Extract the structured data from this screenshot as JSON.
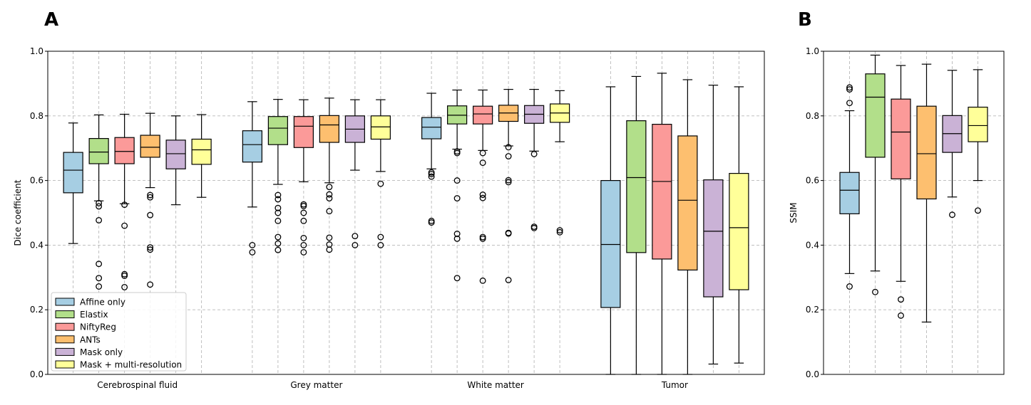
{
  "panel_labels": {
    "a": "A",
    "b": "B"
  },
  "chart_data": [
    {
      "type": "box",
      "panel": "A",
      "ylabel": "Dice coefficient",
      "xlabel": "",
      "ylim": [
        0.0,
        1.0
      ],
      "yticks": [
        "0.0",
        "0.2",
        "0.4",
        "0.6",
        "0.8",
        "1.0"
      ],
      "grid": true,
      "legend_position": "lower-left",
      "methods": [
        "Affine only",
        "Elastix",
        "NiftyReg",
        "ANTs",
        "Mask only",
        "Mask + multi-resolution"
      ],
      "colors": [
        "#a6cee3",
        "#b2df8a",
        "#fb9a99",
        "#fdbf6f",
        "#cab2d6",
        "#ffff99"
      ],
      "categories": [
        "Cerebrospinal fluid",
        "Grey matter",
        "White matter",
        "Tumor"
      ],
      "groups": [
        {
          "category": "Cerebrospinal fluid",
          "boxes": [
            {
              "method": "Affine only",
              "whislo": 0.405,
              "q1": 0.562,
              "med": 0.632,
              "q3": 0.687,
              "whishi": 0.778,
              "fliers": []
            },
            {
              "method": "Elastix",
              "whislo": 0.537,
              "q1": 0.652,
              "med": 0.688,
              "q3": 0.73,
              "whishi": 0.803,
              "fliers": [
                0.53,
                0.52,
                0.477,
                0.342,
                0.298,
                0.272
              ]
            },
            {
              "method": "NiftyReg",
              "whislo": 0.528,
              "q1": 0.652,
              "med": 0.69,
              "q3": 0.733,
              "whishi": 0.805,
              "fliers": [
                0.525,
                0.46,
                0.31,
                0.305,
                0.27
              ]
            },
            {
              "method": "ANTs",
              "whislo": 0.578,
              "q1": 0.672,
              "med": 0.703,
              "q3": 0.74,
              "whishi": 0.808,
              "fliers": [
                0.555,
                0.548,
                0.493,
                0.393,
                0.386,
                0.278
              ]
            },
            {
              "method": "Mask only",
              "whislo": 0.525,
              "q1": 0.636,
              "med": 0.683,
              "q3": 0.725,
              "whishi": 0.8,
              "fliers": []
            },
            {
              "method": "Mask + multi-resolution",
              "whislo": 0.548,
              "q1": 0.65,
              "med": 0.695,
              "q3": 0.728,
              "whishi": 0.804,
              "fliers": []
            }
          ]
        },
        {
          "category": "Grey matter",
          "boxes": [
            {
              "method": "Affine only",
              "whislo": 0.518,
              "q1": 0.657,
              "med": 0.711,
              "q3": 0.754,
              "whishi": 0.844,
              "fliers": [
                0.4,
                0.378
              ]
            },
            {
              "method": "Elastix",
              "whislo": 0.588,
              "q1": 0.711,
              "med": 0.762,
              "q3": 0.798,
              "whishi": 0.851,
              "fliers": [
                0.555,
                0.542,
                0.515,
                0.5,
                0.475,
                0.425,
                0.405,
                0.385
              ]
            },
            {
              "method": "NiftyReg",
              "whislo": 0.596,
              "q1": 0.702,
              "med": 0.768,
              "q3": 0.798,
              "whishi": 0.85,
              "fliers": [
                0.526,
                0.521,
                0.5,
                0.475,
                0.422,
                0.4,
                0.378
              ]
            },
            {
              "method": "ANTs",
              "whislo": 0.593,
              "q1": 0.718,
              "med": 0.772,
              "q3": 0.801,
              "whishi": 0.855,
              "fliers": [
                0.58,
                0.557,
                0.545,
                0.505,
                0.423,
                0.402,
                0.386
              ]
            },
            {
              "method": "Mask only",
              "whislo": 0.632,
              "q1": 0.718,
              "med": 0.759,
              "q3": 0.8,
              "whishi": 0.85,
              "fliers": [
                0.428,
                0.4
              ]
            },
            {
              "method": "Mask + multi-resolution",
              "whislo": 0.628,
              "q1": 0.728,
              "med": 0.766,
              "q3": 0.8,
              "whishi": 0.85,
              "fliers": [
                0.59,
                0.425,
                0.4
              ]
            }
          ]
        },
        {
          "category": "White matter",
          "boxes": [
            {
              "method": "Affine only",
              "whislo": 0.636,
              "q1": 0.729,
              "med": 0.765,
              "q3": 0.795,
              "whishi": 0.87,
              "fliers": [
                0.625,
                0.62,
                0.612,
                0.475,
                0.47
              ]
            },
            {
              "method": "Elastix",
              "whislo": 0.697,
              "q1": 0.775,
              "med": 0.802,
              "q3": 0.831,
              "whishi": 0.88,
              "fliers": [
                0.69,
                0.685,
                0.6,
                0.545,
                0.435,
                0.42,
                0.298
              ]
            },
            {
              "method": "NiftyReg",
              "whislo": 0.693,
              "q1": 0.775,
              "med": 0.806,
              "q3": 0.83,
              "whishi": 0.88,
              "fliers": [
                0.685,
                0.655,
                0.556,
                0.546,
                0.425,
                0.42,
                0.29
              ]
            },
            {
              "method": "ANTs",
              "whislo": 0.707,
              "q1": 0.783,
              "med": 0.809,
              "q3": 0.833,
              "whishi": 0.882,
              "fliers": [
                0.703,
                0.675,
                0.601,
                0.595,
                0.438,
                0.436,
                0.292
              ]
            },
            {
              "method": "Mask only",
              "whislo": 0.691,
              "q1": 0.777,
              "med": 0.805,
              "q3": 0.832,
              "whishi": 0.882,
              "fliers": [
                0.682,
                0.457,
                0.453
              ]
            },
            {
              "method": "Mask + multi-resolution",
              "whislo": 0.72,
              "q1": 0.78,
              "med": 0.809,
              "q3": 0.837,
              "whishi": 0.878,
              "fliers": [
                0.446,
                0.44
              ]
            }
          ]
        },
        {
          "category": "Tumor",
          "boxes": [
            {
              "method": "Affine only",
              "whislo": 0.0,
              "q1": 0.207,
              "med": 0.402,
              "q3": 0.6,
              "whishi": 0.89,
              "fliers": []
            },
            {
              "method": "Elastix",
              "whislo": 0.0,
              "q1": 0.377,
              "med": 0.609,
              "q3": 0.785,
              "whishi": 0.922,
              "fliers": []
            },
            {
              "method": "NiftyReg",
              "whislo": 0.0,
              "q1": 0.357,
              "med": 0.597,
              "q3": 0.774,
              "whishi": 0.932,
              "fliers": []
            },
            {
              "method": "ANTs",
              "whislo": 0.0,
              "q1": 0.323,
              "med": 0.539,
              "q3": 0.738,
              "whishi": 0.912,
              "fliers": []
            },
            {
              "method": "Mask only",
              "whislo": 0.032,
              "q1": 0.24,
              "med": 0.443,
              "q3": 0.602,
              "whishi": 0.895,
              "fliers": []
            },
            {
              "method": "Mask + multi-resolution",
              "whislo": 0.035,
              "q1": 0.262,
              "med": 0.454,
              "q3": 0.622,
              "whishi": 0.89,
              "fliers": []
            }
          ]
        }
      ]
    },
    {
      "type": "box",
      "panel": "B",
      "ylabel": "SSIM",
      "xlabel": "",
      "ylim": [
        0.0,
        1.0
      ],
      "yticks": [
        "0.0",
        "0.2",
        "0.4",
        "0.6",
        "0.8",
        "1.0"
      ],
      "grid": true,
      "methods": [
        "Affine only",
        "Elastix",
        "NiftyReg",
        "ANTs",
        "Mask only",
        "Mask + multi-resolution"
      ],
      "colors": [
        "#a6cee3",
        "#b2df8a",
        "#fb9a99",
        "#fdbf6f",
        "#cab2d6",
        "#ffff99"
      ],
      "boxes": [
        {
          "method": "Affine only",
          "whislo": 0.312,
          "q1": 0.497,
          "med": 0.57,
          "q3": 0.625,
          "whishi": 0.816,
          "fliers": [
            0.888,
            0.882,
            0.84,
            0.272
          ]
        },
        {
          "method": "Elastix",
          "whislo": 0.32,
          "q1": 0.672,
          "med": 0.858,
          "q3": 0.93,
          "whishi": 0.988,
          "fliers": [
            0.255
          ]
        },
        {
          "method": "NiftyReg",
          "whislo": 0.288,
          "q1": 0.605,
          "med": 0.75,
          "q3": 0.852,
          "whishi": 0.956,
          "fliers": [
            0.232,
            0.182
          ]
        },
        {
          "method": "ANTs",
          "whislo": 0.162,
          "q1": 0.543,
          "med": 0.683,
          "q3": 0.83,
          "whishi": 0.96,
          "fliers": []
        },
        {
          "method": "Mask only",
          "whislo": 0.549,
          "q1": 0.687,
          "med": 0.745,
          "q3": 0.801,
          "whishi": 0.941,
          "fliers": [
            0.494
          ]
        },
        {
          "method": "Mask + multi-resolution",
          "whislo": 0.6,
          "q1": 0.72,
          "med": 0.77,
          "q3": 0.827,
          "whishi": 0.943,
          "fliers": [
            0.507
          ]
        }
      ]
    }
  ]
}
